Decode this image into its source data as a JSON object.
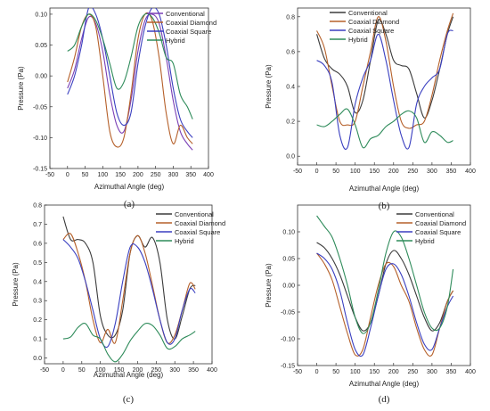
{
  "chart_data": [
    {
      "type": "line",
      "panel_label": "(a)",
      "xlabel": "Azimuthal Angle (deg)",
      "ylabel": "Pressure (Pa)",
      "xlim": [
        -50,
        400
      ],
      "ylim": [
        -0.15,
        0.11
      ],
      "xticks": [
        -50,
        0,
        50,
        100,
        150,
        200,
        250,
        300,
        350,
        400
      ],
      "yticks": [
        -0.15,
        -0.1,
        -0.05,
        0.0,
        0.05,
        0.1
      ],
      "ytick_labels": [
        "-0.15",
        "-0.10",
        "-0.05",
        "0.00",
        "0.05",
        "0.10"
      ],
      "xtick_labels": [
        "-50",
        "0",
        "50",
        "100",
        "150",
        "200",
        "250",
        "300",
        "350",
        "400"
      ],
      "legend": "top-right",
      "legend_order": [
        0,
        1,
        2,
        3
      ],
      "series": [
        {
          "name": "Conventional",
          "color": "#7a3fb5",
          "x": [
            0,
            20,
            40,
            60,
            80,
            100,
            120,
            140,
            160,
            180,
            200,
            220,
            240,
            260,
            280,
            300,
            320,
            340,
            355
          ],
          "y": [
            -0.02,
            0.01,
            0.06,
            0.095,
            0.085,
            0.04,
            -0.03,
            -0.08,
            -0.09,
            -0.04,
            0.04,
            0.09,
            0.1,
            0.085,
            0.03,
            -0.04,
            -0.09,
            -0.11,
            -0.12
          ]
        },
        {
          "name": "Coaxial Diamond",
          "color": "#b5602a",
          "x": [
            0,
            20,
            40,
            60,
            80,
            100,
            120,
            140,
            160,
            180,
            200,
            220,
            240,
            260,
            280,
            300,
            320,
            340,
            355
          ],
          "y": [
            -0.01,
            0.03,
            0.08,
            0.1,
            0.08,
            0.0,
            -0.09,
            -0.115,
            -0.1,
            -0.03,
            0.06,
            0.1,
            0.09,
            0.03,
            -0.06,
            -0.11,
            -0.08,
            -0.1,
            -0.11
          ]
        },
        {
          "name": "Coaxial Square",
          "color": "#3a3fc0",
          "x": [
            0,
            20,
            40,
            60,
            80,
            100,
            120,
            140,
            160,
            180,
            200,
            220,
            240,
            260,
            280,
            300,
            320,
            340,
            355
          ],
          "y": [
            -0.03,
            0.0,
            0.05,
            0.11,
            0.1,
            0.06,
            0.0,
            -0.06,
            -0.08,
            -0.06,
            0.02,
            0.08,
            0.11,
            0.1,
            0.05,
            -0.02,
            -0.07,
            -0.09,
            -0.1
          ]
        },
        {
          "name": "Hybrid",
          "color": "#2e8b5a",
          "x": [
            0,
            20,
            40,
            60,
            80,
            100,
            120,
            140,
            160,
            180,
            200,
            220,
            240,
            260,
            280,
            300,
            320,
            340,
            355
          ],
          "y": [
            0.04,
            0.05,
            0.08,
            0.1,
            0.09,
            0.06,
            0.02,
            -0.02,
            -0.01,
            0.03,
            0.08,
            0.1,
            0.095,
            0.07,
            0.03,
            0.02,
            -0.03,
            -0.05,
            -0.07
          ]
        }
      ]
    },
    {
      "type": "line",
      "panel_label": "(b)",
      "xlabel": "Azimuthal Angle (deg)",
      "ylabel": "Pressure (Pa)",
      "xlim": [
        -50,
        400
      ],
      "ylim": [
        -0.05,
        0.85
      ],
      "xticks": [
        -50,
        0,
        50,
        100,
        150,
        200,
        250,
        300,
        350,
        400
      ],
      "yticks": [
        0.0,
        0.2,
        0.4,
        0.6,
        0.8
      ],
      "ytick_labels": [
        "0.0",
        "0.2",
        "0.4",
        "0.6",
        "0.8"
      ],
      "xtick_labels": [
        "-50",
        "0",
        "50",
        "100",
        "150",
        "200",
        "250",
        "300",
        "350",
        "400"
      ],
      "legend": "top-center",
      "legend_order": [
        0,
        1,
        2,
        3
      ],
      "series": [
        {
          "name": "Conventional",
          "color": "#3b3b3b",
          "x": [
            0,
            20,
            40,
            60,
            80,
            100,
            120,
            140,
            160,
            180,
            200,
            220,
            240,
            260,
            280,
            300,
            320,
            340,
            355
          ],
          "y": [
            0.7,
            0.56,
            0.5,
            0.47,
            0.4,
            0.25,
            0.32,
            0.55,
            0.78,
            0.7,
            0.55,
            0.52,
            0.5,
            0.36,
            0.22,
            0.32,
            0.5,
            0.7,
            0.8
          ]
        },
        {
          "name": "Coaxial Diamond",
          "color": "#b5602a",
          "x": [
            0,
            20,
            40,
            60,
            80,
            100,
            120,
            140,
            160,
            180,
            200,
            220,
            240,
            260,
            280,
            300,
            320,
            340,
            355
          ],
          "y": [
            0.72,
            0.62,
            0.4,
            0.2,
            0.18,
            0.2,
            0.4,
            0.6,
            0.8,
            0.66,
            0.4,
            0.2,
            0.16,
            0.18,
            0.2,
            0.35,
            0.55,
            0.72,
            0.82
          ]
        },
        {
          "name": "Coaxial Square",
          "color": "#3a3fc0",
          "x": [
            0,
            20,
            40,
            60,
            80,
            100,
            120,
            140,
            160,
            180,
            200,
            220,
            240,
            260,
            280,
            300,
            320,
            340,
            355
          ],
          "y": [
            0.55,
            0.52,
            0.42,
            0.12,
            0.05,
            0.3,
            0.45,
            0.55,
            0.7,
            0.55,
            0.32,
            0.12,
            0.05,
            0.3,
            0.4,
            0.45,
            0.5,
            0.7,
            0.72
          ]
        },
        {
          "name": "Hybrid",
          "color": "#2e8b5a",
          "x": [
            0,
            20,
            40,
            60,
            80,
            100,
            120,
            140,
            160,
            180,
            200,
            220,
            240,
            260,
            280,
            300,
            320,
            340,
            355
          ],
          "y": [
            0.18,
            0.17,
            0.2,
            0.24,
            0.27,
            0.18,
            0.05,
            0.1,
            0.12,
            0.17,
            0.2,
            0.24,
            0.26,
            0.22,
            0.08,
            0.14,
            0.12,
            0.08,
            0.09
          ]
        }
      ]
    },
    {
      "type": "line",
      "panel_label": "(c)",
      "xlabel": "Azimuthal Angle (deg)",
      "ylabel": "Pressure (Pa)",
      "xlim": [
        -50,
        400
      ],
      "ylim": [
        -0.03,
        0.8
      ],
      "xticks": [
        -50,
        0,
        50,
        100,
        150,
        200,
        250,
        300,
        350,
        400
      ],
      "yticks": [
        0.0,
        0.1,
        0.2,
        0.3,
        0.4,
        0.5,
        0.6,
        0.7,
        0.8
      ],
      "ytick_labels": [
        "0.0",
        "0.1",
        "0.2",
        "0.3",
        "0.4",
        "0.5",
        "0.6",
        "0.7",
        "0.8"
      ],
      "xtick_labels": [
        "-50",
        "0",
        "50",
        "100",
        "150",
        "200",
        "250",
        "300",
        "350",
        "400"
      ],
      "legend": "top-right",
      "legend_order": [
        0,
        1,
        2,
        3
      ],
      "series": [
        {
          "name": "Conventional",
          "color": "#3b3b3b",
          "x": [
            0,
            20,
            40,
            60,
            80,
            100,
            120,
            140,
            160,
            180,
            200,
            220,
            240,
            260,
            280,
            300,
            320,
            340,
            355
          ],
          "y": [
            0.74,
            0.62,
            0.62,
            0.6,
            0.5,
            0.22,
            0.12,
            0.12,
            0.25,
            0.55,
            0.64,
            0.58,
            0.63,
            0.5,
            0.2,
            0.1,
            0.22,
            0.36,
            0.38
          ]
        },
        {
          "name": "Coaxial Diamond",
          "color": "#b5602a",
          "x": [
            0,
            20,
            40,
            60,
            80,
            100,
            120,
            140,
            160,
            180,
            200,
            220,
            240,
            260,
            280,
            300,
            320,
            340,
            355
          ],
          "y": [
            0.62,
            0.65,
            0.55,
            0.4,
            0.2,
            0.08,
            0.15,
            0.08,
            0.3,
            0.55,
            0.64,
            0.55,
            0.38,
            0.2,
            0.08,
            0.12,
            0.25,
            0.39,
            0.36
          ]
        },
        {
          "name": "Coaxial Square",
          "color": "#3a3fc0",
          "x": [
            0,
            20,
            40,
            60,
            80,
            100,
            120,
            140,
            160,
            180,
            200,
            220,
            240,
            260,
            280,
            300,
            320,
            340,
            355
          ],
          "y": [
            0.62,
            0.58,
            0.52,
            0.4,
            0.25,
            0.1,
            0.06,
            0.18,
            0.4,
            0.58,
            0.58,
            0.5,
            0.36,
            0.2,
            0.08,
            0.1,
            0.25,
            0.36,
            0.34
          ]
        },
        {
          "name": "Hybrid",
          "color": "#2e8b5a",
          "x": [
            0,
            20,
            40,
            60,
            80,
            100,
            120,
            140,
            160,
            180,
            200,
            220,
            240,
            260,
            280,
            300,
            320,
            340,
            355
          ],
          "y": [
            0.1,
            0.11,
            0.16,
            0.18,
            0.12,
            0.1,
            0.02,
            -0.02,
            0.02,
            0.09,
            0.14,
            0.18,
            0.17,
            0.12,
            0.05,
            0.06,
            0.1,
            0.12,
            0.14
          ]
        }
      ]
    },
    {
      "type": "line",
      "panel_label": "(d)",
      "xlabel": "Azimuthal Angle (deg)",
      "ylabel": "Pressure (Pa)",
      "xlim": [
        -50,
        400
      ],
      "ylim": [
        -0.15,
        0.15
      ],
      "xticks": [
        -50,
        0,
        50,
        100,
        150,
        200,
        250,
        300,
        350,
        400
      ],
      "yticks": [
        -0.15,
        -0.1,
        -0.05,
        0.0,
        0.05,
        0.1
      ],
      "ytick_labels": [
        "-0.15",
        "-0.10",
        "-0.05",
        "0.00",
        "0.05",
        "0.10"
      ],
      "xtick_labels": [
        "-50",
        "0",
        "50",
        "100",
        "150",
        "200",
        "250",
        "300",
        "350",
        "400"
      ],
      "legend": "top-right",
      "legend_order": [
        0,
        1,
        2,
        3
      ],
      "series": [
        {
          "name": "Conventional",
          "color": "#3b3b3b",
          "x": [
            0,
            20,
            40,
            60,
            80,
            100,
            120,
            140,
            160,
            180,
            200,
            220,
            240,
            260,
            280,
            300,
            320,
            340,
            355
          ],
          "y": [
            0.08,
            0.07,
            0.05,
            0.02,
            -0.02,
            -0.06,
            -0.085,
            -0.07,
            -0.02,
            0.04,
            0.065,
            0.05,
            0.02,
            -0.02,
            -0.06,
            -0.085,
            -0.07,
            -0.03,
            -0.01
          ]
        },
        {
          "name": "Coaxial Diamond",
          "color": "#b5602a",
          "x": [
            0,
            20,
            40,
            60,
            80,
            100,
            120,
            140,
            160,
            180,
            200,
            220,
            240,
            260,
            280,
            300,
            320,
            340,
            355
          ],
          "y": [
            0.06,
            0.04,
            0.01,
            -0.04,
            -0.09,
            -0.13,
            -0.12,
            -0.06,
            0.0,
            0.04,
            0.035,
            0.0,
            -0.03,
            -0.08,
            -0.12,
            -0.13,
            -0.08,
            -0.03,
            -0.01
          ]
        },
        {
          "name": "Coaxial Square",
          "color": "#3a3fc0",
          "x": [
            0,
            20,
            40,
            60,
            80,
            100,
            120,
            140,
            160,
            180,
            200,
            220,
            240,
            260,
            280,
            300,
            320,
            340,
            355
          ],
          "y": [
            0.06,
            0.05,
            0.03,
            -0.01,
            -0.07,
            -0.12,
            -0.13,
            -0.08,
            -0.02,
            0.03,
            0.04,
            0.02,
            -0.02,
            -0.07,
            -0.11,
            -0.12,
            -0.08,
            -0.04,
            -0.02
          ]
        },
        {
          "name": "Hybrid",
          "color": "#2e8b5a",
          "x": [
            0,
            20,
            40,
            60,
            80,
            100,
            120,
            140,
            160,
            180,
            200,
            220,
            240,
            260,
            280,
            300,
            320,
            340,
            355
          ],
          "y": [
            0.13,
            0.11,
            0.09,
            0.05,
            0.0,
            -0.06,
            -0.09,
            -0.07,
            -0.01,
            0.06,
            0.1,
            0.09,
            0.05,
            0.0,
            -0.05,
            -0.08,
            -0.08,
            -0.04,
            0.03
          ]
        }
      ]
    }
  ]
}
